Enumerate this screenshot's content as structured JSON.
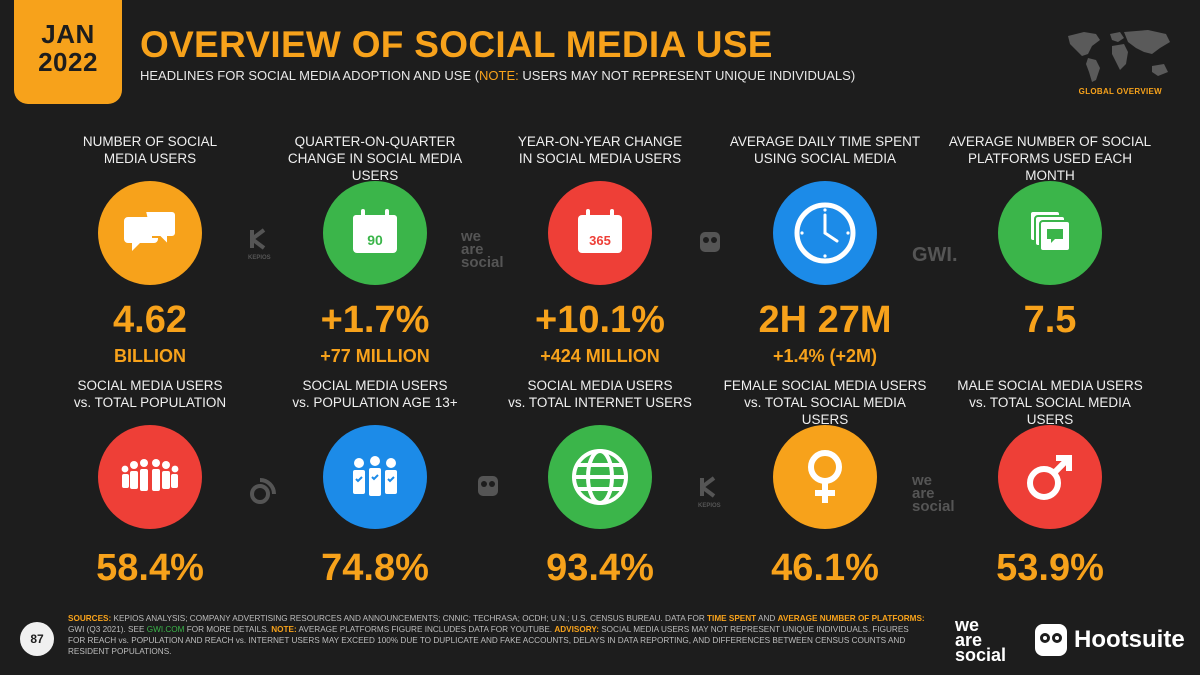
{
  "header": {
    "month": "JAN",
    "year": "2022",
    "title": "OVERVIEW OF SOCIAL MEDIA USE",
    "subtitle_pre": "HEADLINES FOR SOCIAL MEDIA ADOPTION AND USE (",
    "subtitle_note": "NOTE:",
    "subtitle_post": " USERS MAY NOT REPRESENT UNIQUE INDIVIDUALS)",
    "section_tag": "GLOBAL OVERVIEW"
  },
  "top_row": [
    {
      "label": "NUMBER OF SOCIAL\nMEDIA USERS",
      "value": "4.62",
      "sub": "BILLION",
      "icon": "chat-bubbles-icon",
      "color": "#f7a21b"
    },
    {
      "label": "QUARTER-ON-QUARTER\nCHANGE IN SOCIAL MEDIA USERS",
      "value": "+1.7%",
      "sub": "+77 MILLION",
      "icon": "calendar-90-icon",
      "icon_text": "90",
      "color": "#3bb54a"
    },
    {
      "label": "YEAR-ON-YEAR CHANGE\nIN SOCIAL MEDIA USERS",
      "value": "+10.1%",
      "sub": "+424 MILLION",
      "icon": "calendar-365-icon",
      "icon_text": "365",
      "color": "#ee3f37"
    },
    {
      "label": "AVERAGE DAILY TIME SPENT\nUSING SOCIAL MEDIA",
      "value": "2H 27M",
      "sub": "+1.4% (+2M)",
      "icon": "clock-icon",
      "color": "#1c8be8"
    },
    {
      "label": "AVERAGE NUMBER OF SOCIAL\nPLATFORMS USED EACH MONTH",
      "value": "7.5",
      "sub": "",
      "icon": "stacked-windows-icon",
      "color": "#3bb54a"
    }
  ],
  "bottom_row": [
    {
      "label": "SOCIAL MEDIA USERS\nvs. TOTAL POPULATION",
      "value": "58.4%",
      "icon": "crowd-icon",
      "color": "#ee3f37"
    },
    {
      "label": "SOCIAL MEDIA USERS\nvs. POPULATION AGE 13+",
      "value": "74.8%",
      "icon": "people-check-icon",
      "color": "#1c8be8"
    },
    {
      "label": "SOCIAL MEDIA USERS\nvs. TOTAL INTERNET USERS",
      "value": "93.4%",
      "icon": "globe-icon",
      "color": "#3bb54a"
    },
    {
      "label": "FEMALE SOCIAL MEDIA USERS\nvs. TOTAL SOCIAL MEDIA USERS",
      "value": "46.1%",
      "icon": "female-symbol-icon",
      "color": "#f7a21b"
    },
    {
      "label": "MALE SOCIAL MEDIA USERS\nvs. TOTAL SOCIAL MEDIA USERS",
      "value": "53.9%",
      "icon": "male-symbol-icon",
      "color": "#ee3f37"
    }
  ],
  "watermarks": {
    "kepios": "KEPIOS",
    "we_are_social": "we\nare\nsocial",
    "gwi": "GWI."
  },
  "footer": {
    "page_number": "87",
    "sources_label": "SOURCES:",
    "sources_text_1": " KEPIOS ANALYSIS; COMPANY ADVERTISING RESOURCES AND ANNOUNCEMENTS; CNNIC; TECHRASA; OCDH; U.N.; U.S. CENSUS BUREAU. DATA FOR ",
    "time_spent": "TIME SPENT",
    "and": " AND ",
    "avg_platforms": "AVERAGE NUMBER OF PLATFORMS:",
    "sources_text_2": " GWI (Q3 2021). SEE ",
    "gwi_link": "GWI.COM",
    "sources_text_3": " FOR MORE DETAILS. ",
    "note_label": "NOTE:",
    "note_text": " AVERAGE PLATFORMS FIGURE INCLUDES DATA FOR YOUTUBE. ",
    "advisory_label": "ADVISORY:",
    "advisory_text": " SOCIAL MEDIA USERS MAY NOT REPRESENT UNIQUE INDIVIDUALS. FIGURES FOR REACH vs. POPULATION AND REACH vs. INTERNET USERS MAY EXCEED 100% DUE TO DUPLICATE AND FAKE ACCOUNTS, DELAYS IN DATA REPORTING, AND DIFFERENCES BETWEEN CENSUS COUNTS AND RESIDENT POPULATIONS.",
    "brand_ws": "we\nare\nsocial",
    "brand_hootsuite": "Hootsuite"
  }
}
